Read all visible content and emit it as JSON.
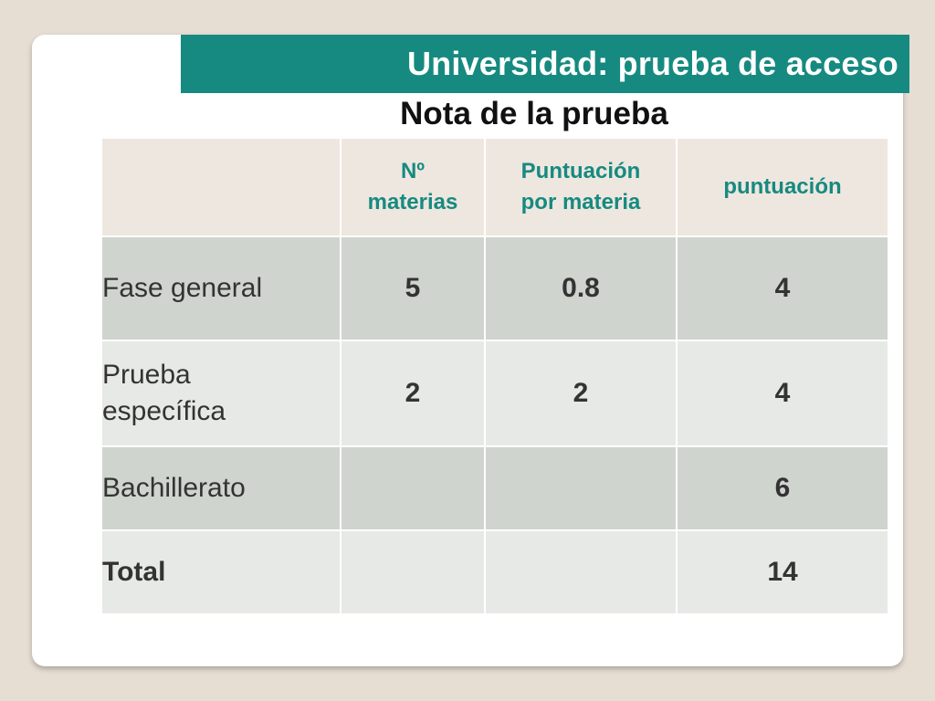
{
  "slide": {
    "title": "Universidad: prueba de acceso",
    "subtitle": "Nota de la prueba"
  },
  "table": {
    "headers": {
      "col1_line1": "Nº",
      "col1_line2": "materias",
      "col2_line1": "Puntuación",
      "col2_line2": "por materia",
      "col3": "puntuación"
    },
    "rows": [
      {
        "label": "Fase general",
        "materias": "5",
        "puntuacion_materia": "0.8",
        "puntuacion": "4"
      },
      {
        "label_line1": "Prueba",
        "label_line2": "específica",
        "materias": "2",
        "puntuacion_materia": "2",
        "puntuacion": "4"
      },
      {
        "label": "Bachillerato",
        "materias": "",
        "puntuacion_materia": "",
        "puntuacion": "6"
      },
      {
        "label": "Total",
        "materias": "",
        "puntuacion_materia": "",
        "puntuacion": "14"
      }
    ]
  },
  "colors": {
    "accent": "#168a80",
    "background": "#e6ddd3",
    "row_dark": "#cfd4ce",
    "row_light": "#e7e9e6",
    "header_bg": "#eee7df"
  }
}
